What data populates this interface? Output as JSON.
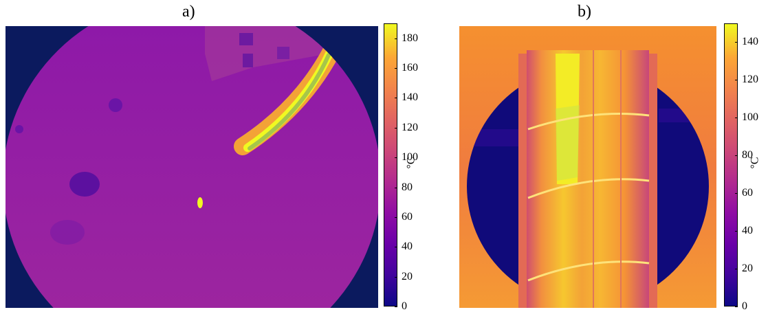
{
  "panels": [
    {
      "label": "a)",
      "colorbar": {
        "unit": "°C",
        "min": 0,
        "max": 190,
        "ticks": [
          "0",
          "20",
          "40",
          "60",
          "80",
          "100",
          "120",
          "140",
          "160",
          "180"
        ]
      }
    },
    {
      "label": "b)",
      "colorbar": {
        "unit": "°C",
        "min": 0,
        "max": 150,
        "ticks": [
          "0",
          "20",
          "40",
          "60",
          "80",
          "100",
          "120",
          "140"
        ]
      }
    }
  ],
  "colormap": "plasma"
}
